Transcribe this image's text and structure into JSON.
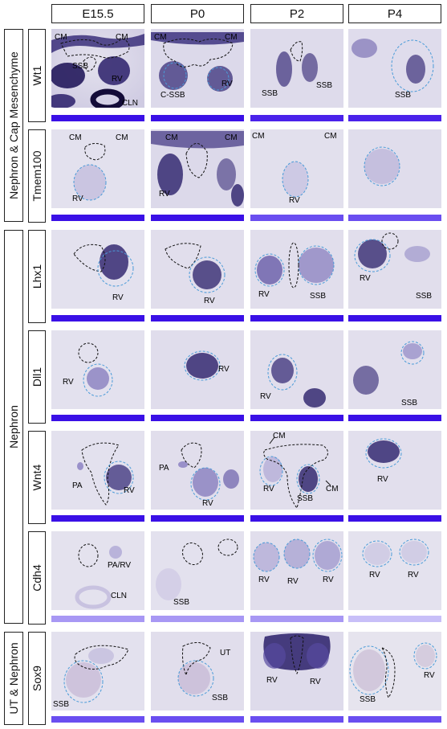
{
  "columns": [
    "E15.5",
    "P0",
    "P2",
    "P4"
  ],
  "groups": [
    {
      "label": "Nephron & Cap Mesenchyme"
    },
    {
      "label": "Nephron"
    },
    {
      "label": "UT & Nephron"
    }
  ],
  "genes": [
    "Wt1",
    "Tmem100",
    "Lhx1",
    "Dll1",
    "Wnt4",
    "Cdh4",
    "Sox9"
  ],
  "bar_colors": {
    "deep": "#3a10e6",
    "mid": "#6a4ef0",
    "light": "#a898f4",
    "pale": "#c8bff8"
  },
  "annotations": {
    "wt1": {
      "e15": [
        "CM",
        "CM",
        "SSB",
        "RV",
        "CLN"
      ],
      "p0": [
        "CM",
        "CM",
        "C-SSB",
        "RV"
      ],
      "p2": [
        "SSB",
        "SSB"
      ],
      "p4": [
        "SSB"
      ]
    },
    "tmem100": {
      "e15": [
        "CM",
        "CM",
        "RV"
      ],
      "p0": [
        "CM",
        "CM",
        "RV"
      ],
      "p2": [
        "CM",
        "CM",
        "RV"
      ],
      "p4": []
    },
    "lhx1": {
      "e15": [
        "RV"
      ],
      "p0": [
        "RV"
      ],
      "p2": [
        "RV",
        "SSB"
      ],
      "p4": [
        "RV",
        "SSB"
      ]
    },
    "dll1": {
      "e15": [
        "RV"
      ],
      "p0": [
        "RV"
      ],
      "p2": [
        "RV"
      ],
      "p4": [
        "SSB"
      ]
    },
    "wnt4": {
      "e15": [
        "PA",
        "RV"
      ],
      "p0": [
        "PA",
        "RV"
      ],
      "p2": [
        "CM",
        "RV",
        "SSB",
        "CM"
      ],
      "p4": [
        "RV"
      ]
    },
    "cdh4": {
      "e15": [
        "PA/RV",
        "CLN"
      ],
      "p0": [
        "SSB"
      ],
      "p2": [
        "RV",
        "RV",
        "RV"
      ],
      "p4": [
        "RV",
        "RV"
      ]
    },
    "sox9": {
      "e15": [
        "SSB"
      ],
      "p0": [
        "UT",
        "SSB"
      ],
      "p2": [
        "RV",
        "RV"
      ],
      "p4": [
        "SSB",
        "RV"
      ]
    }
  }
}
